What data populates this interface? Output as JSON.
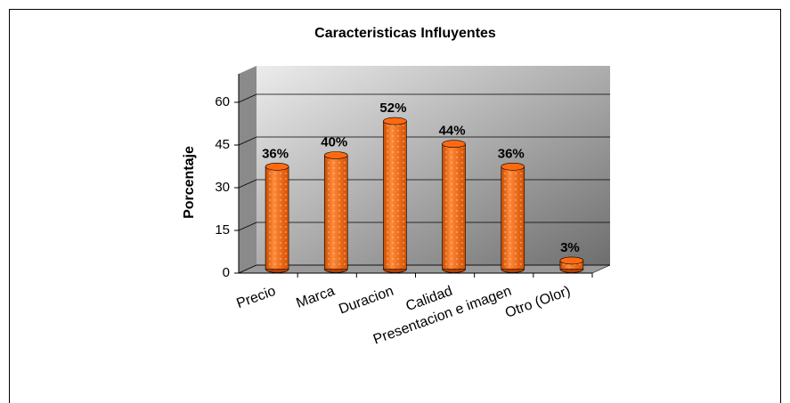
{
  "chart_data": {
    "type": "bar",
    "title": "Caracteristicas Influyentes",
    "y_label": "Porcentaje",
    "categories": [
      "Precio",
      "Marca",
      "Duracion",
      "Calidad",
      "Presentacion e imagen",
      "Otro  (Olor)"
    ],
    "values": [
      36,
      40,
      52,
      44,
      36,
      3
    ],
    "value_labels": [
      "36%",
      "40%",
      "52%",
      "44%",
      "36%",
      "3%"
    ],
    "color": "#ff6a10",
    "ylim": [
      0,
      70
    ],
    "yticks": [
      0,
      15,
      30,
      45,
      60
    ],
    "grid": true
  }
}
